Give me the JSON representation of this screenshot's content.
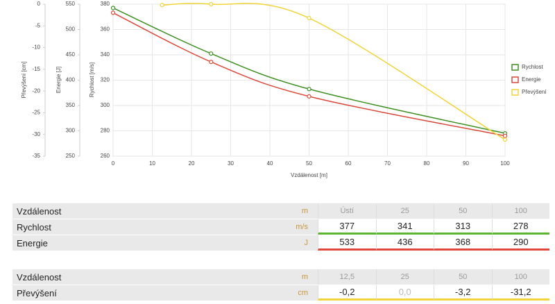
{
  "chart_data": {
    "type": "line",
    "xlabel": "Vzdálenost [m]",
    "xlim": [
      0,
      100
    ],
    "xticks": [
      0,
      10,
      20,
      30,
      40,
      50,
      60,
      70,
      80,
      90,
      100
    ],
    "ylabel": "Rychlost [m/s]",
    "ylim": [
      260,
      380
    ],
    "yticks": [
      260,
      280,
      300,
      320,
      340,
      360,
      380
    ],
    "y2label": "Energie [J]",
    "y2lim": [
      250,
      550
    ],
    "y2ticks": [
      250,
      300,
      350,
      400,
      450,
      500,
      550
    ],
    "y3label": "Převýšení [cm]",
    "y3lim": [
      -35,
      0
    ],
    "y3ticks": [
      -35,
      -30,
      -25,
      -20,
      -15,
      -10,
      -5,
      0
    ],
    "grid": true,
    "legend": "right",
    "series": [
      {
        "name": "Rychlost",
        "color": "#3f8f22",
        "x": [
          0,
          25,
          50,
          100
        ],
        "values": [
          377,
          341,
          313,
          278
        ]
      },
      {
        "name": "Energie",
        "color": "#d9483b",
        "axis": "y2",
        "x": [
          0,
          25,
          50,
          100
        ],
        "values": [
          533,
          436,
          368,
          290
        ]
      },
      {
        "name": "Převýšení",
        "color": "#f0d43a",
        "axis": "y3",
        "x": [
          12.5,
          25,
          50,
          100
        ],
        "values": [
          -0.2,
          0.0,
          -3.2,
          -31.2
        ]
      }
    ]
  },
  "tables": [
    {
      "header": [
        "Vzdálenost",
        "m",
        "Ústí",
        "25",
        "50",
        "100"
      ],
      "rows": [
        [
          "Rychlost",
          "m/s",
          "377",
          "341",
          "313",
          "278"
        ],
        [
          "Energie",
          "J",
          "533",
          "436",
          "368",
          "290"
        ]
      ]
    },
    {
      "header": [
        "Vzdálenost",
        "m",
        "12,5",
        "25",
        "50",
        "100"
      ],
      "rows": [
        [
          "Převýšení",
          "cm",
          "-0,2",
          "0,0",
          "-3,2",
          "-31,2"
        ]
      ]
    }
  ]
}
